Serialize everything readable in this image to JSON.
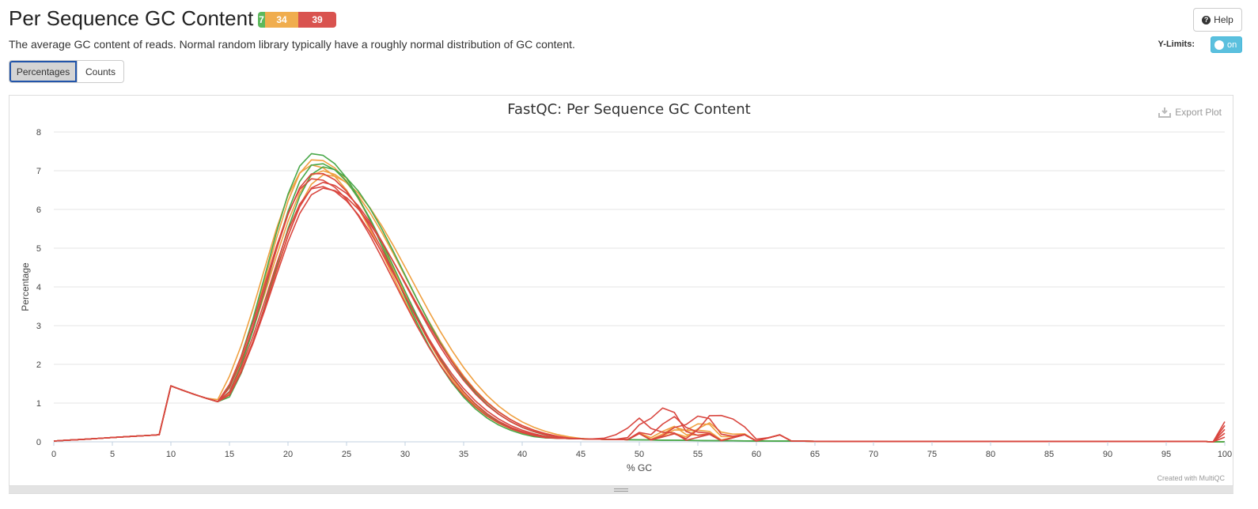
{
  "header": {
    "title": "Per Sequence GC Content",
    "status": {
      "pass": "7",
      "warn": "34",
      "fail": "39"
    },
    "help_label": "Help",
    "description": "The average GC content of reads. Normal random library typically have a roughly normal distribution of GC content."
  },
  "controls": {
    "ylimits_label": "Y-Limits:",
    "ylimits_state": "on",
    "tabs": [
      "Percentages",
      "Counts"
    ],
    "active_tab": "Percentages"
  },
  "plot": {
    "export_label": "Export Plot",
    "credit": "Created with MultiQC"
  },
  "colors": {
    "pass": "#5cb85c",
    "warn": "#f0ad4e",
    "fail": "#d9534f",
    "line_pass": "#4aa84a",
    "line_warn": "#f0a040",
    "line_fail": "#d9463f"
  },
  "chart_data": {
    "type": "line",
    "title": "FastQC: Per Sequence GC Content",
    "xlabel": "% GC",
    "ylabel": "Percentage",
    "xlim": [
      0,
      100
    ],
    "ylim": [
      0,
      8
    ],
    "x_ticks": [
      0,
      5,
      10,
      15,
      20,
      25,
      30,
      35,
      40,
      45,
      50,
      55,
      60,
      65,
      70,
      75,
      80,
      85,
      90,
      95,
      100
    ],
    "y_ticks": [
      0,
      1,
      2,
      3,
      4,
      5,
      6,
      7,
      8
    ],
    "grid": true,
    "series": [
      {
        "status": "pass",
        "peak": 7.45,
        "center": 22.2,
        "sigma": 5.3,
        "bump": null
      },
      {
        "status": "pass",
        "peak": 7.2,
        "center": 22.5,
        "sigma": 5.4,
        "bump": null
      },
      {
        "status": "pass",
        "peak": 7.1,
        "center": 23.0,
        "sigma": 5.6,
        "bump": null
      },
      {
        "status": "warn",
        "peak": 7.3,
        "center": 22.3,
        "sigma": 5.4,
        "bump": [
          55,
          0.35
        ]
      },
      {
        "status": "warn",
        "peak": 7.0,
        "center": 22.8,
        "sigma": 5.8,
        "bump": [
          54,
          0.25
        ]
      },
      {
        "status": "warn",
        "peak": 6.9,
        "center": 23.2,
        "sigma": 5.9,
        "bump": [
          56,
          0.3
        ]
      },
      {
        "status": "warn",
        "peak": 7.15,
        "center": 22.0,
        "sigma": 5.5,
        "bump": [
          53,
          0.2
        ]
      },
      {
        "status": "fail",
        "peak": 6.6,
        "center": 22.6,
        "sigma": 5.6,
        "bump": [
          52,
          0.75
        ]
      },
      {
        "status": "fail",
        "peak": 6.7,
        "center": 22.9,
        "sigma": 5.7,
        "bump": [
          57,
          0.65
        ]
      },
      {
        "status": "fail",
        "peak": 6.8,
        "center": 22.2,
        "sigma": 5.5,
        "bump": [
          55,
          0.55
        ]
      },
      {
        "status": "fail",
        "peak": 6.95,
        "center": 22.4,
        "sigma": 5.5,
        "bump": [
          53,
          0.45
        ]
      },
      {
        "status": "fail",
        "peak": 6.55,
        "center": 23.0,
        "sigma": 5.8,
        "bump": [
          50,
          0.4
        ]
      }
    ]
  }
}
